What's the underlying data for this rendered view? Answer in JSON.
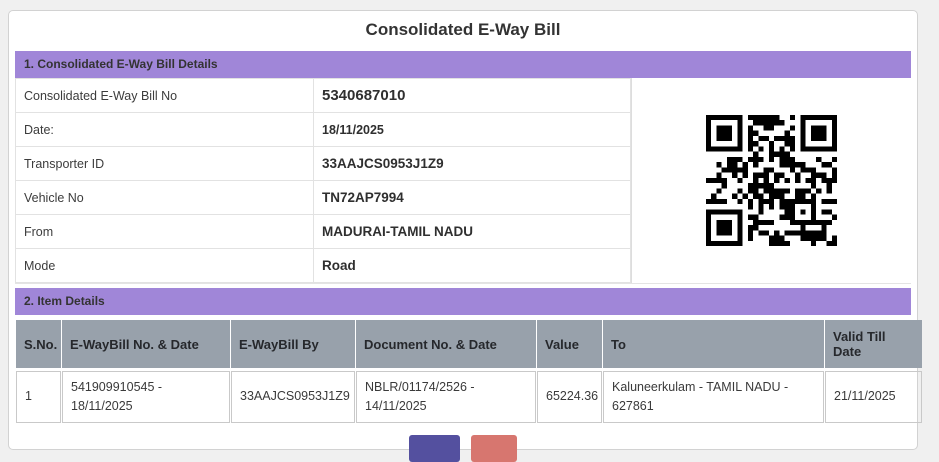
{
  "page": {
    "title": "Consolidated E-Way Bill"
  },
  "section1": {
    "heading": "1. Consolidated E-Way Bill Details",
    "rows": [
      {
        "label": "Consolidated E-Way Bill No",
        "value": "5340687010"
      },
      {
        "label": "Date:",
        "value": "18/11/2025"
      },
      {
        "label": "Transporter ID",
        "value": "33AAJCS0953J1Z9"
      },
      {
        "label": "Vehicle No",
        "value": "TN72AP7994"
      },
      {
        "label": "From",
        "value": "MADURAI-TAMIL NADU"
      },
      {
        "label": "Mode",
        "value": "Road"
      }
    ],
    "qr_icon": "qr-code"
  },
  "section2": {
    "heading": "2. Item Details",
    "columns": [
      "S.No.",
      "E-WayBill No. & Date",
      "E-WayBill By",
      "Document No. & Date",
      "Value",
      "To",
      "Valid Till Date"
    ],
    "rows": [
      {
        "sno": "1",
        "ewaybill_no_date": "541909910545 - 18/11/2025",
        "ewaybill_by": "33AAJCS0953J1Z9",
        "document_no_date": "NBLR/01174/2526 - 14/11/2025",
        "value": "65224.36",
        "to": "Kaluneerkulam - TAMIL NADU - 627861",
        "valid_till_date": "21/11/2025"
      }
    ]
  },
  "footer": {
    "buttons": [
      {
        "label": "",
        "color": "#54509f"
      },
      {
        "label": "",
        "color": "#d7766f"
      }
    ]
  },
  "colors": {
    "accent_purple": "#a086d8",
    "table_header_gray": "#98a1ab",
    "button_primary": "#54509f",
    "button_secondary": "#d7766f"
  }
}
